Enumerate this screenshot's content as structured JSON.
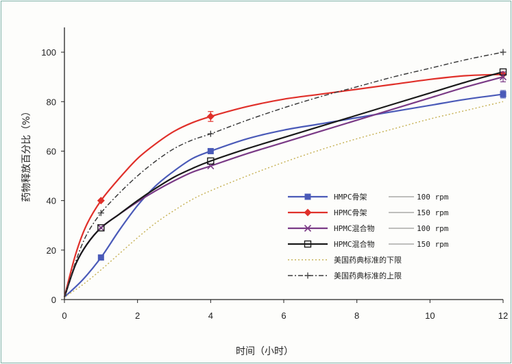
{
  "chart_data": {
    "type": "line",
    "xlabel": "时间（小时）",
    "ylabel": "药物释放百分比（%）",
    "xlim": [
      0,
      12
    ],
    "ylim": [
      0,
      110
    ],
    "x_ticks": [
      0,
      2,
      4,
      6,
      8,
      10,
      12
    ],
    "y_ticks": [
      0,
      20,
      40,
      60,
      80,
      100
    ],
    "grid": false,
    "legend_position": "lower-right",
    "series": [
      {
        "name": "HMPC骨架",
        "label_main": "HMPC骨架",
        "label_speed": "100 rpm",
        "color": "#4a5ab8",
        "style": "solid",
        "marker": "square",
        "x": [
          0,
          1,
          4,
          12
        ],
        "y": [
          1,
          17,
          60,
          83
        ],
        "curve": [
          [
            0,
            1
          ],
          [
            0.5,
            8
          ],
          [
            1,
            17
          ],
          [
            1.5,
            28
          ],
          [
            2,
            38
          ],
          [
            2.5,
            46
          ],
          [
            3,
            52
          ],
          [
            3.5,
            57
          ],
          [
            4,
            60
          ],
          [
            5,
            65
          ],
          [
            6,
            68.5
          ],
          [
            7,
            71
          ],
          [
            8,
            73.5
          ],
          [
            9,
            76
          ],
          [
            10,
            78.5
          ],
          [
            11,
            81
          ],
          [
            12,
            83
          ]
        ]
      },
      {
        "name": "HPMC骨架",
        "label_main": "HPMC骨架",
        "label_speed": "150 rpm",
        "color": "#e0302a",
        "style": "solid",
        "marker": "diamond",
        "x": [
          0,
          1,
          4,
          12
        ],
        "y": [
          1,
          40,
          74,
          91
        ],
        "curve": [
          [
            0,
            1
          ],
          [
            0.3,
            18
          ],
          [
            0.6,
            30
          ],
          [
            1,
            40
          ],
          [
            1.5,
            49
          ],
          [
            2,
            57
          ],
          [
            2.5,
            63
          ],
          [
            3,
            68
          ],
          [
            3.5,
            71.5
          ],
          [
            4,
            74
          ],
          [
            5,
            78
          ],
          [
            6,
            81
          ],
          [
            7,
            83
          ],
          [
            8,
            85
          ],
          [
            9,
            87
          ],
          [
            10,
            89
          ],
          [
            11,
            90.5
          ],
          [
            12,
            91
          ]
        ]
      },
      {
        "name": "HPMC混合物",
        "label_main": "HPMC混合物",
        "label_speed": "100 rpm",
        "color": "#7a3a86",
        "style": "solid",
        "marker": "x",
        "x": [
          0,
          1,
          4,
          12
        ],
        "y": [
          1,
          29,
          54,
          90
        ],
        "curve": [
          [
            0,
            1
          ],
          [
            0.3,
            14
          ],
          [
            0.6,
            22
          ],
          [
            1,
            29
          ],
          [
            1.5,
            34.5
          ],
          [
            2,
            39.5
          ],
          [
            2.5,
            44
          ],
          [
            3,
            48
          ],
          [
            3.5,
            51.5
          ],
          [
            4,
            54
          ],
          [
            5,
            59
          ],
          [
            6,
            63.5
          ],
          [
            7,
            68
          ],
          [
            8,
            72.5
          ],
          [
            9,
            77
          ],
          [
            10,
            81.5
          ],
          [
            11,
            86
          ],
          [
            12,
            90
          ]
        ]
      },
      {
        "name": "HPMC混合物",
        "label_main": "HPMC混合物",
        "label_speed": "150 rpm",
        "color": "#1a1a1a",
        "style": "solid",
        "marker": "square-open",
        "x": [
          0,
          1,
          4,
          12
        ],
        "y": [
          1,
          29,
          56,
          92
        ],
        "curve": [
          [
            0,
            1
          ],
          [
            0.3,
            14
          ],
          [
            0.6,
            22
          ],
          [
            1,
            29
          ],
          [
            1.5,
            34.5
          ],
          [
            2,
            40
          ],
          [
            2.5,
            45
          ],
          [
            3,
            49.5
          ],
          [
            3.5,
            53
          ],
          [
            4,
            56
          ],
          [
            5,
            61
          ],
          [
            6,
            65.5
          ],
          [
            7,
            70
          ],
          [
            8,
            74.5
          ],
          [
            9,
            79
          ],
          [
            10,
            83.5
          ],
          [
            11,
            88
          ],
          [
            12,
            92
          ]
        ]
      },
      {
        "name": "美国药典标准的下限",
        "label_main": "美国药典标准的下限",
        "label_speed": "",
        "color": "#c8b45a",
        "style": "dotted",
        "marker": "none",
        "x": [
          0,
          1,
          4,
          12
        ],
        "y": [
          1,
          12,
          44,
          80
        ],
        "curve": [
          [
            0,
            1
          ],
          [
            0.5,
            6
          ],
          [
            1,
            12
          ],
          [
            1.5,
            18.5
          ],
          [
            2,
            25
          ],
          [
            2.5,
            31
          ],
          [
            3,
            36
          ],
          [
            3.5,
            40.5
          ],
          [
            4,
            44
          ],
          [
            5,
            50
          ],
          [
            6,
            55.5
          ],
          [
            7,
            60.5
          ],
          [
            8,
            65
          ],
          [
            9,
            69
          ],
          [
            10,
            73
          ],
          [
            11,
            76.5
          ],
          [
            12,
            80
          ]
        ]
      },
      {
        "name": "美国药典标准的上限",
        "label_main": "美国药典标准的上限",
        "label_speed": "",
        "color": "#3a3a3a",
        "style": "dashdot",
        "marker": "plus",
        "x": [
          0,
          1,
          4,
          12
        ],
        "y": [
          1,
          35,
          67,
          100
        ],
        "curve": [
          [
            0,
            1
          ],
          [
            0.3,
            15
          ],
          [
            0.6,
            26
          ],
          [
            1,
            35
          ],
          [
            1.5,
            43
          ],
          [
            2,
            50
          ],
          [
            2.5,
            56
          ],
          [
            3,
            61
          ],
          [
            3.5,
            64.5
          ],
          [
            4,
            67
          ],
          [
            5,
            72.5
          ],
          [
            6,
            77.5
          ],
          [
            7,
            82
          ],
          [
            8,
            86
          ],
          [
            9,
            90
          ],
          [
            10,
            93.5
          ],
          [
            11,
            97
          ],
          [
            12,
            100
          ]
        ]
      }
    ],
    "error_bars": [
      {
        "series": 1,
        "x": 4,
        "y": 74,
        "err": 2
      },
      {
        "series": 0,
        "x": 12,
        "y": 83,
        "err": 1.5
      },
      {
        "series": 2,
        "x": 12,
        "y": 90,
        "err": 2
      }
    ]
  }
}
